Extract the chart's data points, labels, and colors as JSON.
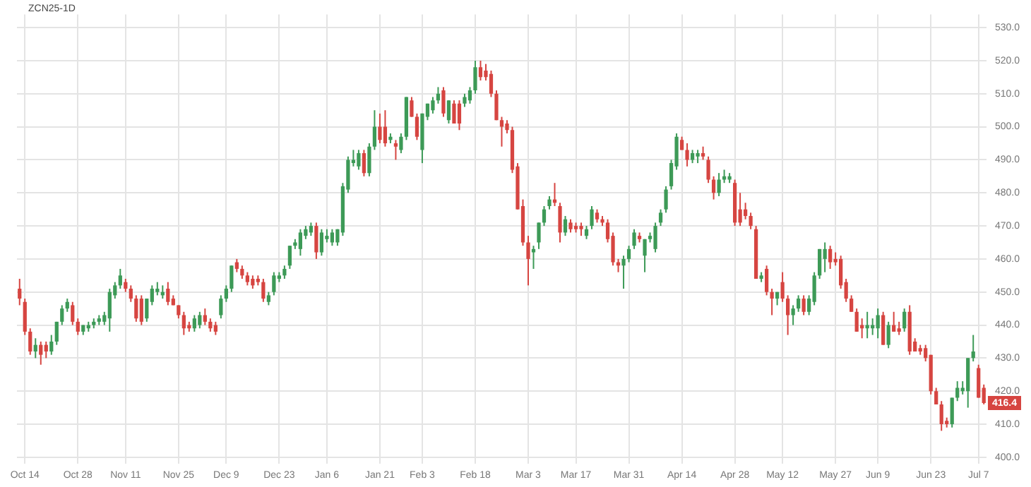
{
  "chart_data": {
    "type": "candlestick",
    "title": "ZCN25-1D",
    "categories": [
      null,
      "Oct 14",
      null,
      null,
      null,
      null,
      null,
      null,
      null,
      null,
      null,
      "Oct 28",
      null,
      null,
      null,
      null,
      null,
      null,
      null,
      null,
      "Nov 11",
      null,
      null,
      null,
      null,
      null,
      null,
      null,
      null,
      null,
      "Nov 25",
      null,
      null,
      null,
      null,
      null,
      null,
      null,
      null,
      "Dec 9",
      null,
      null,
      null,
      null,
      null,
      null,
      null,
      null,
      null,
      "Dec 23",
      null,
      null,
      null,
      null,
      null,
      null,
      null,
      null,
      "Jan 6",
      null,
      null,
      null,
      null,
      null,
      null,
      null,
      null,
      null,
      "Jan 21",
      null,
      null,
      null,
      null,
      null,
      null,
      null,
      "Feb 3",
      null,
      null,
      null,
      null,
      null,
      null,
      null,
      null,
      null,
      "Feb 18",
      null,
      null,
      null,
      null,
      null,
      null,
      null,
      null,
      null,
      "Mar 3",
      null,
      null,
      null,
      null,
      null,
      null,
      null,
      null,
      "Mar 17",
      null,
      null,
      null,
      null,
      null,
      null,
      null,
      null,
      null,
      "Mar 31",
      null,
      null,
      null,
      null,
      null,
      null,
      null,
      null,
      null,
      "Apr 14",
      null,
      null,
      null,
      null,
      null,
      null,
      null,
      null,
      null,
      "Apr 28",
      null,
      null,
      null,
      null,
      null,
      null,
      null,
      null,
      "May 12",
      null,
      null,
      null,
      null,
      null,
      null,
      null,
      null,
      null,
      "May 27",
      null,
      null,
      null,
      null,
      null,
      null,
      null,
      "Jun 9",
      null,
      null,
      null,
      null,
      null,
      null,
      null,
      null,
      null,
      "Jun 23",
      null,
      null,
      null,
      null,
      null,
      null,
      null,
      null,
      "Jul 7",
      null
    ],
    "ohlc": [
      [
        451,
        454,
        446,
        448
      ],
      [
        447,
        448,
        437,
        438
      ],
      [
        438,
        439,
        431,
        432
      ],
      [
        432,
        436,
        430,
        434
      ],
      [
        434,
        435,
        428,
        431
      ],
      [
        434,
        435,
        430,
        432
      ],
      [
        432,
        437,
        431,
        435
      ],
      [
        435,
        441,
        434,
        441
      ],
      [
        441,
        446,
        440,
        445
      ],
      [
        445,
        448,
        444,
        447
      ],
      [
        446,
        447,
        440,
        441
      ],
      [
        441,
        442,
        437,
        438
      ],
      [
        438,
        440,
        437,
        440
      ],
      [
        439,
        441,
        438,
        440
      ],
      [
        440,
        442,
        439,
        441
      ],
      [
        441,
        443,
        440,
        442
      ],
      [
        441,
        444,
        440,
        443
      ],
      [
        442,
        451,
        438,
        450
      ],
      [
        449,
        453,
        448,
        452
      ],
      [
        452,
        457,
        451,
        455
      ],
      [
        453,
        454,
        450,
        451
      ],
      [
        451,
        452,
        447,
        448
      ],
      [
        448,
        449,
        441,
        442
      ],
      [
        448,
        449,
        440,
        441
      ],
      [
        442,
        448,
        441,
        448
      ],
      [
        447,
        452,
        446,
        451
      ],
      [
        450,
        453,
        449,
        451
      ],
      [
        449,
        452,
        448,
        450
      ],
      [
        451,
        453,
        446,
        447
      ],
      [
        448,
        449,
        446,
        446
      ],
      [
        446,
        446,
        442,
        443
      ],
      [
        443,
        444,
        437,
        439
      ],
      [
        440,
        441,
        438,
        439
      ],
      [
        439,
        443,
        438,
        442
      ],
      [
        440,
        444,
        439,
        443
      ],
      [
        443,
        445,
        440,
        441
      ],
      [
        441,
        442,
        438,
        439
      ],
      [
        440,
        441,
        437,
        438
      ],
      [
        443,
        449,
        442,
        448
      ],
      [
        448,
        452,
        447,
        451
      ],
      [
        451,
        458,
        450,
        458
      ],
      [
        459,
        460,
        456,
        457
      ],
      [
        457,
        458,
        454,
        455
      ],
      [
        455,
        456,
        452,
        453
      ],
      [
        454,
        455,
        451,
        452
      ],
      [
        454,
        455,
        452,
        453
      ],
      [
        453,
        454,
        447,
        448
      ],
      [
        447,
        450,
        446,
        449
      ],
      [
        450,
        456,
        449,
        455
      ],
      [
        454,
        456,
        453,
        455
      ],
      [
        455,
        458,
        454,
        457
      ],
      [
        458,
        464,
        457,
        464
      ],
      [
        464,
        466,
        463,
        465
      ],
      [
        463,
        469,
        461,
        468
      ],
      [
        467,
        470,
        466,
        469
      ],
      [
        468,
        471,
        467,
        470
      ],
      [
        470,
        471,
        460,
        462
      ],
      [
        462,
        469,
        461,
        468
      ],
      [
        466,
        469,
        465,
        467
      ],
      [
        465,
        469,
        464,
        468
      ],
      [
        465,
        469,
        464,
        469
      ],
      [
        468,
        483,
        467,
        482
      ],
      [
        481,
        491,
        480,
        490
      ],
      [
        489,
        493,
        488,
        490
      ],
      [
        488,
        493,
        487,
        492
      ],
      [
        492,
        493,
        485,
        486
      ],
      [
        486,
        495,
        485,
        494
      ],
      [
        494,
        505,
        493,
        500
      ],
      [
        500,
        504,
        495,
        496
      ],
      [
        500,
        505,
        494,
        495
      ],
      [
        496,
        498,
        495,
        497
      ],
      [
        495,
        496,
        490,
        494
      ],
      [
        493,
        498,
        492,
        497
      ],
      [
        497,
        509,
        496,
        509
      ],
      [
        508,
        509,
        503,
        503
      ],
      [
        503,
        504,
        496,
        497
      ],
      [
        493,
        504,
        489,
        504
      ],
      [
        503,
        507,
        502,
        507
      ],
      [
        505,
        509,
        504,
        508
      ],
      [
        508,
        512,
        507,
        510
      ],
      [
        511,
        512,
        503,
        504
      ],
      [
        502,
        508,
        501,
        508
      ],
      [
        507,
        508,
        501,
        501
      ],
      [
        507,
        508,
        499,
        501
      ],
      [
        507,
        510,
        506,
        509
      ],
      [
        508,
        512,
        507,
        511
      ],
      [
        511,
        520,
        510,
        518
      ],
      [
        518,
        520,
        514,
        515
      ],
      [
        517,
        519,
        514,
        515
      ],
      [
        516,
        517,
        509,
        510
      ],
      [
        510,
        511,
        502,
        502
      ],
      [
        502,
        503,
        494,
        500
      ],
      [
        501,
        502,
        498,
        499
      ],
      [
        499,
        500,
        486,
        487
      ],
      [
        488,
        489,
        475,
        475
      ],
      [
        476,
        478,
        464,
        465
      ],
      [
        465,
        467,
        452,
        460
      ],
      [
        462,
        464,
        457,
        463
      ],
      [
        465,
        471,
        463,
        471
      ],
      [
        471,
        476,
        470,
        475
      ],
      [
        476,
        479,
        475,
        478
      ],
      [
        478,
        483,
        476,
        477
      ],
      [
        476,
        477,
        465,
        468
      ],
      [
        468,
        473,
        467,
        472
      ],
      [
        471,
        472,
        468,
        469
      ],
      [
        470,
        471,
        468,
        469
      ],
      [
        470,
        471,
        467,
        469
      ],
      [
        467,
        470,
        466,
        469
      ],
      [
        470,
        476,
        469,
        475
      ],
      [
        474,
        475,
        471,
        472
      ],
      [
        472,
        473,
        470,
        471
      ],
      [
        471,
        472,
        465,
        466
      ],
      [
        467,
        468,
        458,
        459
      ],
      [
        459,
        460,
        456,
        458
      ],
      [
        458,
        461,
        451,
        460
      ],
      [
        460,
        464,
        459,
        463
      ],
      [
        464,
        469,
        463,
        468
      ],
      [
        467,
        468,
        465,
        466
      ],
      [
        461,
        466,
        456,
        466
      ],
      [
        466,
        468,
        465,
        467
      ],
      [
        463,
        471,
        462,
        470
      ],
      [
        471,
        475,
        470,
        474
      ],
      [
        475,
        482,
        474,
        481
      ],
      [
        482,
        490,
        481,
        489
      ],
      [
        488,
        498,
        487,
        497
      ],
      [
        496,
        497,
        493,
        493
      ],
      [
        493,
        495,
        488,
        490
      ],
      [
        490,
        493,
        489,
        492
      ],
      [
        491,
        493,
        489,
        492
      ],
      [
        492,
        494,
        490,
        491
      ],
      [
        490,
        491,
        483,
        484
      ],
      [
        484,
        485,
        478,
        480
      ],
      [
        480,
        486,
        479,
        484
      ],
      [
        484,
        487,
        483,
        485
      ],
      [
        484,
        486,
        483,
        485
      ],
      [
        483,
        484,
        470,
        471
      ],
      [
        475,
        480,
        470,
        471
      ],
      [
        475,
        477,
        472,
        473
      ],
      [
        473,
        474,
        469,
        470
      ],
      [
        469,
        470,
        454,
        454
      ],
      [
        454,
        456,
        453,
        455
      ],
      [
        457,
        458,
        449,
        450
      ],
      [
        450,
        451,
        443,
        448
      ],
      [
        448,
        450,
        446,
        450
      ],
      [
        453,
        456,
        447,
        448
      ],
      [
        448,
        449,
        437,
        443
      ],
      [
        443,
        446,
        440,
        445
      ],
      [
        445,
        449,
        444,
        448
      ],
      [
        448,
        449,
        443,
        444
      ],
      [
        444,
        449,
        443,
        448
      ],
      [
        447,
        456,
        446,
        455
      ],
      [
        455,
        463,
        454,
        463
      ],
      [
        460,
        465,
        456,
        463
      ],
      [
        463,
        464,
        457,
        459
      ],
      [
        460,
        462,
        458,
        459
      ],
      [
        460,
        461,
        451,
        452
      ],
      [
        453,
        454,
        447,
        448
      ],
      [
        448,
        449,
        444,
        444
      ],
      [
        444,
        445,
        438,
        438
      ],
      [
        440,
        442,
        436,
        439
      ],
      [
        439,
        444,
        436,
        440
      ],
      [
        439,
        442,
        437,
        440
      ],
      [
        439,
        445,
        436,
        443
      ],
      [
        443,
        444,
        434,
        434
      ],
      [
        434,
        441,
        433,
        440
      ],
      [
        440,
        444,
        438,
        438
      ],
      [
        439,
        441,
        437,
        438
      ],
      [
        439,
        445,
        438,
        444
      ],
      [
        444,
        446,
        431,
        432
      ],
      [
        435,
        436,
        432,
        432
      ],
      [
        433,
        434,
        431,
        432
      ],
      [
        433,
        434,
        429,
        430
      ],
      [
        431,
        431,
        419,
        420
      ],
      [
        420,
        421,
        416,
        416
      ],
      [
        416,
        417,
        408,
        410
      ],
      [
        411,
        412,
        409,
        410
      ],
      [
        410,
        418,
        409,
        418
      ],
      [
        418,
        423,
        417,
        421
      ],
      [
        420,
        423,
        419,
        421
      ],
      [
        420,
        430,
        415,
        430
      ],
      [
        430,
        437,
        429,
        432
      ],
      [
        427,
        428,
        418,
        418
      ],
      [
        421,
        422,
        416,
        416.4
      ]
    ],
    "colors": [
      "#d64541",
      "#d64541",
      "#d64541",
      "#3d9a57",
      "#d64541",
      "#d64541",
      "#3d9a57",
      "#3d9a57",
      "#3d9a57",
      "#3d9a57",
      "#d64541",
      "#d64541",
      "#3d9a57",
      "#3d9a57",
      "#3d9a57",
      "#3d9a57",
      "#3d9a57",
      "#3d9a57",
      "#3d9a57",
      "#3d9a57",
      "#d64541",
      "#d64541",
      "#d64541",
      "#d64541",
      "#3d9a57",
      "#3d9a57",
      "#3d9a57",
      "#3d9a57",
      "#d64541",
      "#d64541",
      "#d64541",
      "#d64541",
      "#d64541",
      "#3d9a57",
      "#3d9a57",
      "#d64541",
      "#d64541",
      "#d64541",
      "#3d9a57",
      "#3d9a57",
      "#3d9a57",
      "#d64541",
      "#d64541",
      "#d64541",
      "#d64541",
      "#d64541",
      "#d64541",
      "#3d9a57",
      "#3d9a57",
      "#3d9a57",
      "#3d9a57",
      "#3d9a57",
      "#3d9a57",
      "#3d9a57",
      "#3d9a57",
      "#3d9a57",
      "#d64541",
      "#3d9a57",
      "#3d9a57",
      "#3d9a57",
      "#3d9a57",
      "#3d9a57",
      "#3d9a57",
      "#3d9a57",
      "#3d9a57",
      "#d64541",
      "#3d9a57",
      "#3d9a57",
      "#d64541",
      "#d64541",
      "#3d9a57",
      "#d64541",
      "#3d9a57",
      "#3d9a57",
      "#d64541",
      "#d64541",
      "#3d9a57",
      "#3d9a57",
      "#3d9a57",
      "#3d9a57",
      "#d64541",
      "#3d9a57",
      "#d64541",
      "#d64541",
      "#3d9a57",
      "#3d9a57",
      "#3d9a57",
      "#d64541",
      "#d64541",
      "#d64541",
      "#d64541",
      "#d64541",
      "#d64541",
      "#d64541",
      "#d64541",
      "#d64541",
      "#d64541",
      "#3d9a57",
      "#3d9a57",
      "#3d9a57",
      "#3d9a57",
      "#d64541",
      "#d64541",
      "#3d9a57",
      "#d64541",
      "#d64541",
      "#d64541",
      "#3d9a57",
      "#3d9a57",
      "#d64541",
      "#d64541",
      "#d64541",
      "#d64541",
      "#d64541",
      "#3d9a57",
      "#3d9a57",
      "#3d9a57",
      "#d64541",
      "#3d9a57",
      "#3d9a57",
      "#3d9a57",
      "#3d9a57",
      "#3d9a57",
      "#3d9a57",
      "#3d9a57",
      "#d64541",
      "#d64541",
      "#3d9a57",
      "#3d9a57",
      "#d64541",
      "#d64541",
      "#d64541",
      "#3d9a57",
      "#3d9a57",
      "#3d9a57",
      "#d64541",
      "#d64541",
      "#d64541",
      "#d64541",
      "#d64541",
      "#3d9a57",
      "#d64541",
      "#d64541",
      "#3d9a57",
      "#d64541",
      "#d64541",
      "#3d9a57",
      "#3d9a57",
      "#d64541",
      "#3d9a57",
      "#3d9a57",
      "#3d9a57",
      "#3d9a57",
      "#d64541",
      "#d64541",
      "#d64541",
      "#d64541",
      "#d64541",
      "#d64541",
      "#d64541",
      "#3d9a57",
      "#3d9a57",
      "#3d9a57",
      "#d64541",
      "#3d9a57",
      "#d64541",
      "#d64541",
      "#3d9a57",
      "#d64541",
      "#d64541",
      "#d64541",
      "#d64541",
      "#d64541",
      "#d64541",
      "#d64541",
      "#d64541",
      "#3d9a57",
      "#3d9a57",
      "#3d9a57",
      "#3d9a57",
      "#3d9a57",
      "#d64541",
      "#d64541"
    ],
    "ylim": [
      398,
      534
    ],
    "yticks": [
      {
        "value": 400,
        "label": "400.0"
      },
      {
        "value": 410,
        "label": "410.0"
      },
      {
        "value": 420,
        "label": "420.0"
      },
      {
        "value": 430,
        "label": "430.0"
      },
      {
        "value": 440,
        "label": "440.0"
      },
      {
        "value": 450,
        "label": "450.0"
      },
      {
        "value": 460,
        "label": "460.0"
      },
      {
        "value": 470,
        "label": "470.0"
      },
      {
        "value": 480,
        "label": "480.0"
      },
      {
        "value": 490,
        "label": "490.0"
      },
      {
        "value": 500,
        "label": "500.0"
      },
      {
        "value": 510,
        "label": "510.0"
      },
      {
        "value": 520,
        "label": "520.0"
      },
      {
        "value": 530,
        "label": "530.0"
      }
    ],
    "grid": true,
    "annotations": [
      {
        "text": "416.4",
        "y": 416.4
      }
    ]
  }
}
